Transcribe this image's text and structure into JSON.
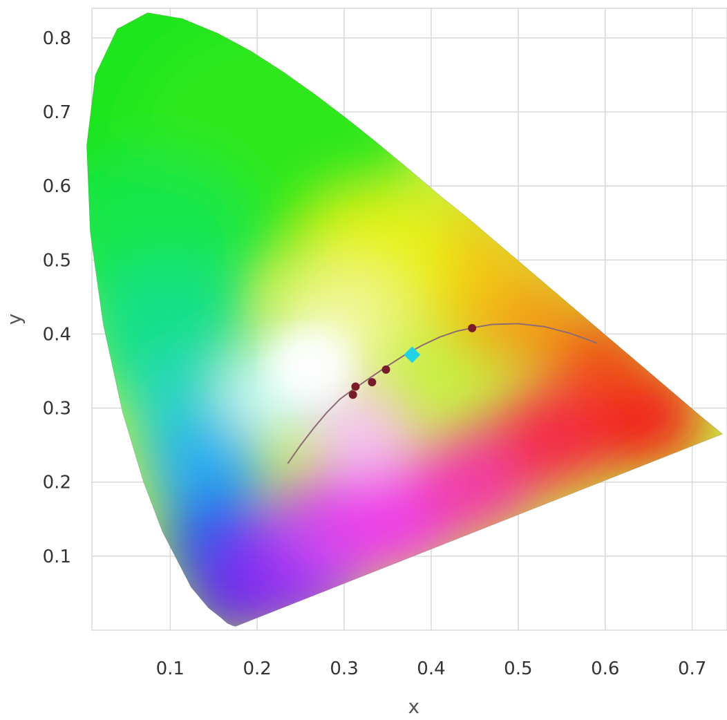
{
  "chart_data": {
    "type": "scatter",
    "xlabel": "x",
    "ylabel": "y",
    "xlim": [
      0.01,
      0.74
    ],
    "ylim": [
      0.0,
      0.84
    ],
    "x_ticks": [
      "0.1",
      "0.2",
      "0.3",
      "0.4",
      "0.5",
      "0.6",
      "0.7"
    ],
    "y_ticks": [
      "0.1",
      "0.2",
      "0.3",
      "0.4",
      "0.5",
      "0.6",
      "0.7",
      "0.8"
    ],
    "grid": true,
    "spectral_locus": [
      [
        0.175,
        0.005
      ],
      [
        0.172,
        0.006
      ],
      [
        0.166,
        0.009
      ],
      [
        0.157,
        0.018
      ],
      [
        0.144,
        0.03
      ],
      [
        0.124,
        0.058
      ],
      [
        0.091,
        0.133
      ],
      [
        0.069,
        0.201
      ],
      [
        0.045,
        0.295
      ],
      [
        0.023,
        0.413
      ],
      [
        0.008,
        0.538
      ],
      [
        0.004,
        0.655
      ],
      [
        0.014,
        0.75
      ],
      [
        0.039,
        0.812
      ],
      [
        0.074,
        0.834
      ],
      [
        0.114,
        0.826
      ],
      [
        0.155,
        0.806
      ],
      [
        0.193,
        0.782
      ],
      [
        0.23,
        0.754
      ],
      [
        0.266,
        0.724
      ],
      [
        0.302,
        0.692
      ],
      [
        0.337,
        0.659
      ],
      [
        0.373,
        0.624
      ],
      [
        0.408,
        0.589
      ],
      [
        0.444,
        0.555
      ],
      [
        0.479,
        0.52
      ],
      [
        0.512,
        0.487
      ],
      [
        0.544,
        0.455
      ],
      [
        0.575,
        0.424
      ],
      [
        0.603,
        0.396
      ],
      [
        0.627,
        0.372
      ],
      [
        0.658,
        0.341
      ],
      [
        0.685,
        0.314
      ],
      [
        0.71,
        0.289
      ],
      [
        0.735,
        0.265
      ]
    ],
    "planckian_locus": [
      [
        0.235,
        0.225
      ],
      [
        0.25,
        0.25
      ],
      [
        0.265,
        0.273
      ],
      [
        0.28,
        0.294
      ],
      [
        0.295,
        0.312
      ],
      [
        0.31,
        0.325
      ],
      [
        0.33,
        0.341
      ],
      [
        0.35,
        0.357
      ],
      [
        0.37,
        0.372
      ],
      [
        0.39,
        0.385
      ],
      [
        0.41,
        0.396
      ],
      [
        0.43,
        0.404
      ],
      [
        0.45,
        0.409
      ],
      [
        0.47,
        0.413
      ],
      [
        0.5,
        0.414
      ],
      [
        0.53,
        0.41
      ],
      [
        0.56,
        0.401
      ],
      [
        0.59,
        0.388
      ]
    ],
    "series": [
      {
        "marker": "dot",
        "color": "#7a1c28",
        "points": [
          [
            0.31,
            0.318
          ],
          [
            0.313,
            0.329
          ],
          [
            0.332,
            0.335
          ],
          [
            0.348,
            0.352
          ],
          [
            0.447,
            0.408
          ]
        ]
      },
      {
        "marker": "diamond",
        "color": "#22d3e8",
        "points": [
          [
            0.378,
            0.372
          ]
        ]
      }
    ],
    "colors": {
      "plot_background": "#ffffff",
      "grid": "#d8d8d8",
      "planckian_curve": "#8c6b73"
    }
  }
}
